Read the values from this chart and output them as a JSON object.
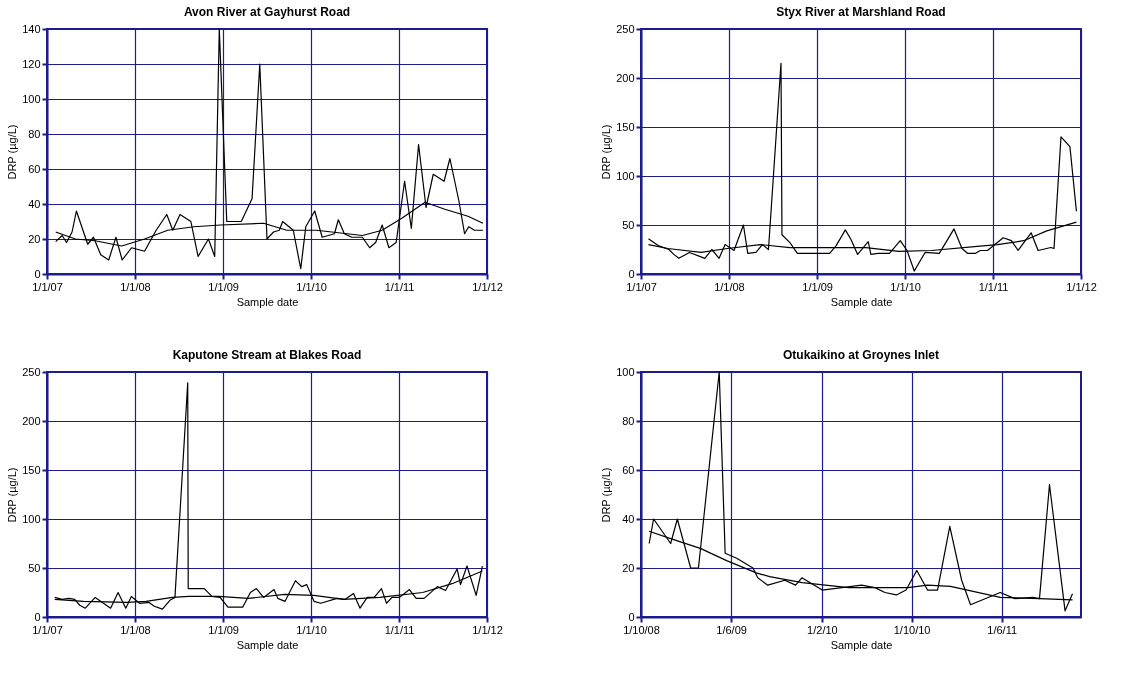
{
  "chart_data": [
    {
      "type": "line",
      "title": "Avon River at Gayhurst Road",
      "xlabel": "Sample date",
      "ylabel": "DRP (µg/L)",
      "grid": true,
      "legend": false,
      "line_style": "solid",
      "marker": "none",
      "xlim": [
        "2007-01-01",
        "2012-01-01"
      ],
      "xticks": [
        {
          "value": "2007-01-01",
          "label": "1/1/07"
        },
        {
          "value": "2008-01-01",
          "label": "1/1/08"
        },
        {
          "value": "2009-01-01",
          "label": "1/1/09"
        },
        {
          "value": "2010-01-01",
          "label": "1/1/10"
        },
        {
          "value": "2011-01-01",
          "label": "1/1/11"
        },
        {
          "value": "2012-01-01",
          "label": "1/1/12"
        }
      ],
      "ylim": [
        0,
        140
      ],
      "yticks": [
        0,
        20,
        40,
        60,
        80,
        100,
        120,
        140
      ],
      "series": [
        {
          "color": "#000000",
          "x": [
            "2007-02-06",
            "2007-03-05",
            "2007-03-23",
            "2007-04-15",
            "2007-05-03",
            "2007-06-19",
            "2007-07-13",
            "2007-08-12",
            "2007-09-14",
            "2007-10-14",
            "2007-11-09",
            "2007-12-18",
            "2008-02-10",
            "2008-03-29",
            "2008-05-12",
            "2008-06-06",
            "2008-07-06",
            "2008-08-20",
            "2008-09-19",
            "2008-11-01",
            "2008-11-27",
            "2008-12-16",
            "2009-01-16",
            "2009-03-17",
            "2009-05-01",
            "2009-06-02",
            "2009-07-02",
            "2009-07-29",
            "2009-08-22",
            "2009-09-05",
            "2009-10-19",
            "2009-11-19",
            "2009-12-10",
            "2010-01-16",
            "2010-02-16",
            "2010-04-08",
            "2010-04-24",
            "2010-05-19",
            "2010-06-19",
            "2010-08-02",
            "2010-09-01",
            "2010-09-26",
            "2010-10-23",
            "2010-11-20",
            "2010-12-20",
            "2011-01-24",
            "2011-02-21",
            "2011-03-23",
            "2011-04-23",
            "2011-05-23",
            "2011-07-07",
            "2011-07-31",
            "2011-09-06",
            "2011-09-30",
            "2011-10-17",
            "2011-11-10",
            "2011-12-15"
          ],
          "values": [
            18.5,
            22,
            18,
            24,
            36,
            17,
            21,
            11,
            8,
            21,
            8,
            15,
            13,
            25,
            34,
            25,
            34,
            30,
            10,
            20,
            10,
            140,
            30,
            30,
            43,
            120,
            20,
            24,
            25,
            30,
            25,
            3,
            27,
            36,
            21,
            23,
            31,
            23,
            21,
            21,
            15,
            18,
            28,
            15,
            18,
            53,
            26,
            74,
            38,
            57,
            53,
            66,
            42,
            23,
            27,
            25,
            25
          ]
        },
        {
          "color": "#000000",
          "x": [
            "2007-02-06",
            "2007-04-29",
            "2007-07-20",
            "2007-11-07",
            "2008-02-10",
            "2008-05-16",
            "2008-09-02",
            "2008-12-21",
            "2009-06-18",
            "2009-09-22",
            "2010-01-23",
            "2010-08-02",
            "2010-10-23",
            "2011-01-14",
            "2011-04-19",
            "2011-07-10",
            "2011-10-14",
            "2011-12-15"
          ],
          "values": [
            24,
            20,
            19,
            16,
            20,
            25,
            27,
            28,
            29,
            25,
            25,
            22,
            25,
            32,
            41,
            37,
            33,
            29
          ]
        }
      ]
    },
    {
      "type": "line",
      "title": "Styx River at Marshland Road",
      "xlabel": "Sample date",
      "ylabel": "DRP (µg/L)",
      "grid": true,
      "legend": false,
      "line_style": "solid",
      "marker": "none",
      "xlim": [
        "2007-01-01",
        "2012-01-01"
      ],
      "xticks": [
        {
          "value": "2007-01-01",
          "label": "1/1/07"
        },
        {
          "value": "2008-01-01",
          "label": "1/1/08"
        },
        {
          "value": "2009-01-01",
          "label": "1/1/09"
        },
        {
          "value": "2010-01-01",
          "label": "1/1/10"
        },
        {
          "value": "2011-01-01",
          "label": "1/1/11"
        },
        {
          "value": "2012-01-01",
          "label": "1/1/12"
        }
      ],
      "ylim": [
        0,
        250
      ],
      "yticks": [
        0,
        50,
        100,
        150,
        200,
        250
      ],
      "series": [
        {
          "color": "#000000",
          "x": [
            "2007-02-01",
            "2007-03-13",
            "2007-04-27",
            "2007-05-17",
            "2007-06-07",
            "2007-07-21",
            "2007-09-23",
            "2007-10-22",
            "2007-11-21",
            "2007-12-16",
            "2008-01-22",
            "2008-03-01",
            "2008-03-19",
            "2008-04-22",
            "2008-05-19",
            "2008-06-13",
            "2008-08-04",
            "2008-08-08",
            "2008-09-10",
            "2008-10-11",
            "2009-02-22",
            "2009-03-21",
            "2009-04-28",
            "2009-05-22",
            "2009-06-18",
            "2009-08-01",
            "2009-08-12",
            "2009-09-11",
            "2009-10-28",
            "2009-12-12",
            "2010-01-09",
            "2010-02-08",
            "2010-03-25",
            "2010-05-23",
            "2010-07-23",
            "2010-08-25",
            "2010-09-18",
            "2010-10-19",
            "2010-11-09",
            "2010-12-09",
            "2011-02-12",
            "2011-03-18",
            "2011-04-15",
            "2011-06-08",
            "2011-07-07",
            "2011-08-29",
            "2011-09-11",
            "2011-10-10",
            "2011-11-16",
            "2011-12-13"
          ],
          "values": [
            36,
            29,
            25,
            20,
            16,
            22,
            16,
            25,
            16,
            30,
            24,
            50,
            21,
            22,
            30,
            25,
            215,
            40,
            32,
            21,
            21,
            29,
            45,
            35,
            20,
            33,
            20,
            21,
            21,
            34,
            24,
            3,
            22,
            21,
            46,
            26,
            21,
            21,
            24,
            24,
            37,
            34,
            24,
            42,
            24,
            27,
            26,
            140,
            130,
            64
          ]
        },
        {
          "color": "#000000",
          "x": [
            "2007-02-01",
            "2007-04-23",
            "2007-09-07",
            "2007-12-25",
            "2008-05-10",
            "2008-09-10",
            "2009-02-22",
            "2009-07-22",
            "2009-12-06",
            "2010-04-21",
            "2010-10-16",
            "2011-01-19",
            "2011-05-08",
            "2011-08-12",
            "2011-12-13"
          ],
          "values": [
            30,
            26,
            22,
            26,
            30,
            27,
            27,
            27,
            23,
            24,
            28,
            30,
            34,
            44,
            53
          ]
        }
      ]
    },
    {
      "type": "line",
      "title": "Kaputone Stream at Blakes Road",
      "xlabel": "Sample date",
      "ylabel": "DRP (µg/L)",
      "grid": true,
      "legend": false,
      "line_style": "solid",
      "marker": "none",
      "xlim": [
        "2007-01-01",
        "2012-01-01"
      ],
      "xticks": [
        {
          "value": "2007-01-01",
          "label": "1/1/07"
        },
        {
          "value": "2008-01-01",
          "label": "1/1/08"
        },
        {
          "value": "2009-01-01",
          "label": "1/1/09"
        },
        {
          "value": "2010-01-01",
          "label": "1/1/10"
        },
        {
          "value": "2011-01-01",
          "label": "1/1/11"
        },
        {
          "value": "2012-01-01",
          "label": "1/1/12"
        }
      ],
      "ylim": [
        0,
        250
      ],
      "yticks": [
        0,
        50,
        100,
        150,
        200,
        250
      ],
      "series": [
        {
          "color": "#000000",
          "x": [
            "2007-02-02",
            "2007-03-05",
            "2007-04-02",
            "2007-04-26",
            "2007-05-17",
            "2007-06-09",
            "2007-07-20",
            "2007-09-22",
            "2007-10-23",
            "2007-11-24",
            "2007-12-17",
            "2008-01-20",
            "2008-02-27",
            "2008-03-21",
            "2008-04-24",
            "2008-05-25",
            "2008-06-15",
            "2008-08-07",
            "2008-08-09",
            "2008-10-15",
            "2008-11-15",
            "2008-12-19",
            "2009-01-21",
            "2009-03-23",
            "2009-04-24",
            "2009-05-19",
            "2009-06-18",
            "2009-07-31",
            "2009-08-16",
            "2009-09-15",
            "2009-10-28",
            "2009-11-23",
            "2009-12-14",
            "2010-01-13",
            "2010-02-10",
            "2010-04-19",
            "2010-05-23",
            "2010-06-26",
            "2010-07-23",
            "2010-08-22",
            "2010-09-20",
            "2010-10-20",
            "2010-11-10",
            "2010-12-03",
            "2011-01-03",
            "2011-02-13",
            "2011-03-13",
            "2011-04-15",
            "2011-06-09",
            "2011-07-13",
            "2011-08-30",
            "2011-09-13",
            "2011-10-10",
            "2011-11-17",
            "2011-12-13"
          ],
          "values": [
            20,
            18,
            19,
            18,
            12,
            9,
            20,
            9,
            25,
            9,
            21,
            14,
            15,
            11,
            8,
            17,
            20,
            239,
            29,
            29,
            21,
            20,
            10,
            10,
            25,
            29,
            20,
            28,
            19,
            16,
            37,
            31,
            33,
            16,
            14,
            19,
            18,
            24,
            9,
            20,
            20,
            29,
            14,
            20,
            20,
            28,
            19,
            19,
            31,
            27,
            49,
            33,
            52,
            22,
            52
          ]
        },
        {
          "color": "#000000",
          "x": [
            "2007-02-02",
            "2007-06-02",
            "2007-11-26",
            "2008-02-16",
            "2008-06-05",
            "2008-08-12",
            "2008-12-13",
            "2009-04-15",
            "2009-09-13",
            "2010-01-13",
            "2010-05-16",
            "2010-10-13",
            "2011-04-09",
            "2011-08-09",
            "2011-12-13"
          ],
          "values": [
            18,
            16,
            15,
            16,
            20,
            21,
            21,
            19,
            23,
            22,
            18,
            20,
            25,
            34,
            47
          ]
        }
      ]
    },
    {
      "type": "line",
      "title": "Otukaikino at Groynes Inlet",
      "xlabel": "Sample date",
      "ylabel": "DRP (µg/L)",
      "grid": true,
      "legend": false,
      "line_style": "solid",
      "marker": "none",
      "xlim": [
        "2008-10-01",
        "2012-01-01"
      ],
      "xticks": [
        {
          "value": "2008-10-01",
          "label": "1/10/08"
        },
        {
          "value": "2009-06-01",
          "label": "1/6/09"
        },
        {
          "value": "2010-02-01",
          "label": "1/2/10"
        },
        {
          "value": "2010-10-01",
          "label": "1/10/10"
        },
        {
          "value": "2011-06-01",
          "label": "1/6/11"
        }
      ],
      "ylim": [
        0,
        100
      ],
      "yticks": [
        0,
        20,
        40,
        60,
        80,
        100
      ],
      "series": [
        {
          "color": "#000000",
          "x": [
            "2008-10-23",
            "2008-11-04",
            "2008-12-20",
            "2009-01-07",
            "2009-02-12",
            "2009-03-05",
            "2009-04-30",
            "2009-05-16",
            "2009-06-16",
            "2009-07-30",
            "2009-08-12",
            "2009-09-08",
            "2009-10-24",
            "2009-11-22",
            "2009-12-09",
            "2010-02-02",
            "2010-03-27",
            "2010-05-19",
            "2010-06-24",
            "2010-07-21",
            "2010-08-21",
            "2010-09-16",
            "2010-10-15",
            "2010-11-13",
            "2010-12-10",
            "2011-01-12",
            "2011-02-13",
            "2011-03-09",
            "2011-05-28",
            "2011-07-07",
            "2011-08-24",
            "2011-09-11",
            "2011-10-08",
            "2011-11-19",
            "2011-12-09"
          ],
          "values": [
            30,
            40,
            30,
            40,
            20,
            20,
            100,
            26,
            24,
            20,
            16,
            13,
            15,
            13,
            16,
            11,
            12,
            13,
            12,
            10,
            9,
            11,
            19,
            11,
            11,
            37,
            15,
            5,
            10,
            7.5,
            8,
            7.5,
            54,
            2.5,
            9.5
          ]
        },
        {
          "color": "#000000",
          "x": [
            "2008-10-23",
            "2008-12-20",
            "2009-03-10",
            "2009-05-20",
            "2009-08-08",
            "2009-09-13",
            "2009-12-10",
            "2010-04-14",
            "2010-09-21",
            "2010-11-13",
            "2011-01-14",
            "2011-05-28",
            "2011-09-11",
            "2011-12-09"
          ],
          "values": [
            35,
            32,
            28,
            23,
            18,
            16.5,
            14,
            12,
            12,
            13,
            12.5,
            8,
            7.5,
            7
          ]
        }
      ]
    }
  ]
}
